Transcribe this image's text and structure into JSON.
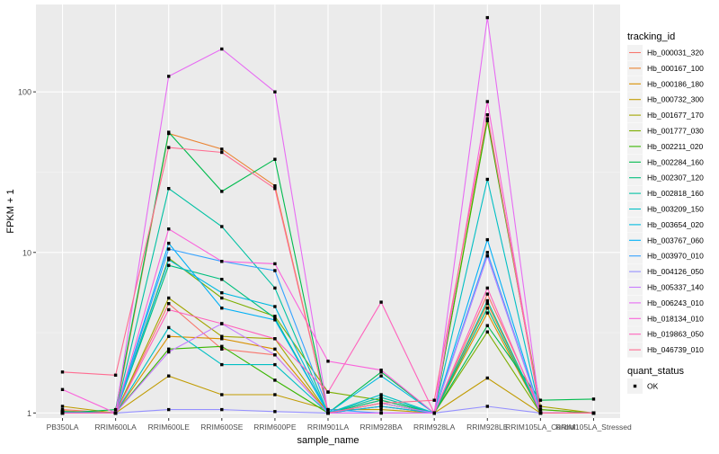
{
  "chart_data": {
    "type": "line",
    "xlabel": "sample_name",
    "ylabel": "FPKM + 1",
    "y_scale": "log10",
    "ylim": [
      0.93,
      350
    ],
    "y_ticks": [
      {
        "value": 1,
        "label": "1"
      },
      {
        "value": 10,
        "label": "10"
      },
      {
        "value": 100,
        "label": "100"
      }
    ],
    "grid": true,
    "legend_position": "right",
    "categories": [
      "PB350LA",
      "RRIM600LA",
      "RRIM600LE",
      "RRIM600SE",
      "RRIM600PE",
      "RRIM901LA",
      "RRIM928BA",
      "RRIM928LA",
      "RRIM928LE",
      "RRIM105LA_Control",
      "RRIM105LA_Stressed"
    ],
    "series": [
      {
        "name": "Hb_000031_320",
        "color": "#F8766D",
        "values": [
          1.05,
          1.0,
          4.8,
          2.5,
          2.3,
          1.0,
          1.2,
          1.0,
          5.5,
          1.05,
          1.0
        ]
      },
      {
        "name": "Hb_000167_100",
        "color": "#EA8331",
        "values": [
          1.02,
          1.0,
          55,
          44,
          26,
          1.0,
          1.15,
          1.0,
          4.8,
          1.0,
          1.0
        ]
      },
      {
        "name": "Hb_000186_180",
        "color": "#D89000",
        "values": [
          1.03,
          1.0,
          3.0,
          2.9,
          2.5,
          1.0,
          1.1,
          1.0,
          4.2,
          1.0,
          1.0
        ]
      },
      {
        "name": "Hb_000732_300",
        "color": "#C09B00",
        "values": [
          1.1,
          1.0,
          1.7,
          1.3,
          1.3,
          1.05,
          1.05,
          1.0,
          1.65,
          1.0,
          1.0
        ]
      },
      {
        "name": "Hb_001677_170",
        "color": "#A3A500",
        "values": [
          1.01,
          1.0,
          5.2,
          3.0,
          2.9,
          1.0,
          1.1,
          1.0,
          68,
          1.1,
          1.0
        ]
      },
      {
        "name": "Hb_001777_030",
        "color": "#7CAE00",
        "values": [
          1.02,
          1.0,
          9.2,
          5.2,
          4.0,
          1.35,
          1.2,
          1.0,
          3.2,
          1.0,
          1.0
        ]
      },
      {
        "name": "Hb_002211_020",
        "color": "#39B600",
        "values": [
          1.0,
          1.0,
          2.5,
          2.6,
          1.6,
          1.0,
          1.15,
          1.0,
          66,
          1.05,
          1.0
        ]
      },
      {
        "name": "Hb_002284_160",
        "color": "#00BB4E",
        "values": [
          1.0,
          1.05,
          56,
          24,
          38,
          1.0,
          1.8,
          1.0,
          3.5,
          1.2,
          1.22
        ]
      },
      {
        "name": "Hb_002307_120",
        "color": "#00BF7D",
        "values": [
          1.0,
          1.0,
          8.3,
          6.8,
          3.9,
          1.0,
          1.2,
          1.0,
          4.5,
          1.0,
          1.0
        ]
      },
      {
        "name": "Hb_002818_160",
        "color": "#00C1A3",
        "values": [
          1.02,
          1.0,
          25,
          14.5,
          6.0,
          1.0,
          1.25,
          1.0,
          5.0,
          1.0,
          1.0
        ]
      },
      {
        "name": "Hb_003209_150",
        "color": "#00BFC4",
        "values": [
          1.0,
          1.0,
          3.4,
          2.0,
          2.0,
          1.0,
          1.3,
          1.0,
          28.5,
          1.0,
          1.0
        ]
      },
      {
        "name": "Hb_003654_020",
        "color": "#00BAE0",
        "values": [
          1.0,
          1.0,
          9.0,
          5.6,
          4.6,
          1.0,
          1.7,
          1.0,
          9.5,
          1.0,
          1.0
        ]
      },
      {
        "name": "Hb_003767_060",
        "color": "#00B0F6",
        "values": [
          1.0,
          1.0,
          11.4,
          4.5,
          3.8,
          1.0,
          1.1,
          1.0,
          12.0,
          1.0,
          1.0
        ]
      },
      {
        "name": "Hb_003970_010",
        "color": "#35A2FF",
        "values": [
          1.0,
          1.0,
          10.5,
          8.8,
          7.7,
          1.05,
          1.0,
          1.0,
          10.0,
          1.0,
          1.0
        ]
      },
      {
        "name": "Hb_004126_050",
        "color": "#9590FF",
        "values": [
          1.0,
          1.0,
          1.05,
          1.05,
          1.02,
          1.0,
          1.0,
          1.0,
          1.1,
          1.0,
          1.0
        ]
      },
      {
        "name": "Hb_005337_140",
        "color": "#C77CFF",
        "values": [
          1.0,
          1.0,
          2.4,
          3.6,
          2.3,
          1.0,
          1.15,
          1.0,
          9.5,
          1.0,
          1.0
        ]
      },
      {
        "name": "Hb_006243_010",
        "color": "#E76BF3",
        "values": [
          1.0,
          1.0,
          125,
          185,
          100,
          1.0,
          1.0,
          1.0,
          290,
          1.0,
          1.0
        ]
      },
      {
        "name": "Hb_018134_010",
        "color": "#FA62DB",
        "values": [
          1.4,
          1.0,
          14,
          8.8,
          8.5,
          2.1,
          1.85,
          1.0,
          87,
          1.0,
          1.0
        ]
      },
      {
        "name": "Hb_019863_050",
        "color": "#FF62BC",
        "values": [
          1.0,
          1.0,
          4.4,
          3.6,
          2.9,
          1.35,
          4.9,
          1.0,
          6.0,
          1.0,
          1.0
        ]
      },
      {
        "name": "Hb_046739_010",
        "color": "#FF6C91",
        "values": [
          1.8,
          1.72,
          45,
          42,
          25,
          1.0,
          1.15,
          1.2,
          72,
          1.0,
          1.0
        ]
      }
    ],
    "legend": {
      "title": "tracking_id",
      "point_legend_title": "quant_status",
      "point_legend_items": [
        "OK"
      ]
    }
  }
}
